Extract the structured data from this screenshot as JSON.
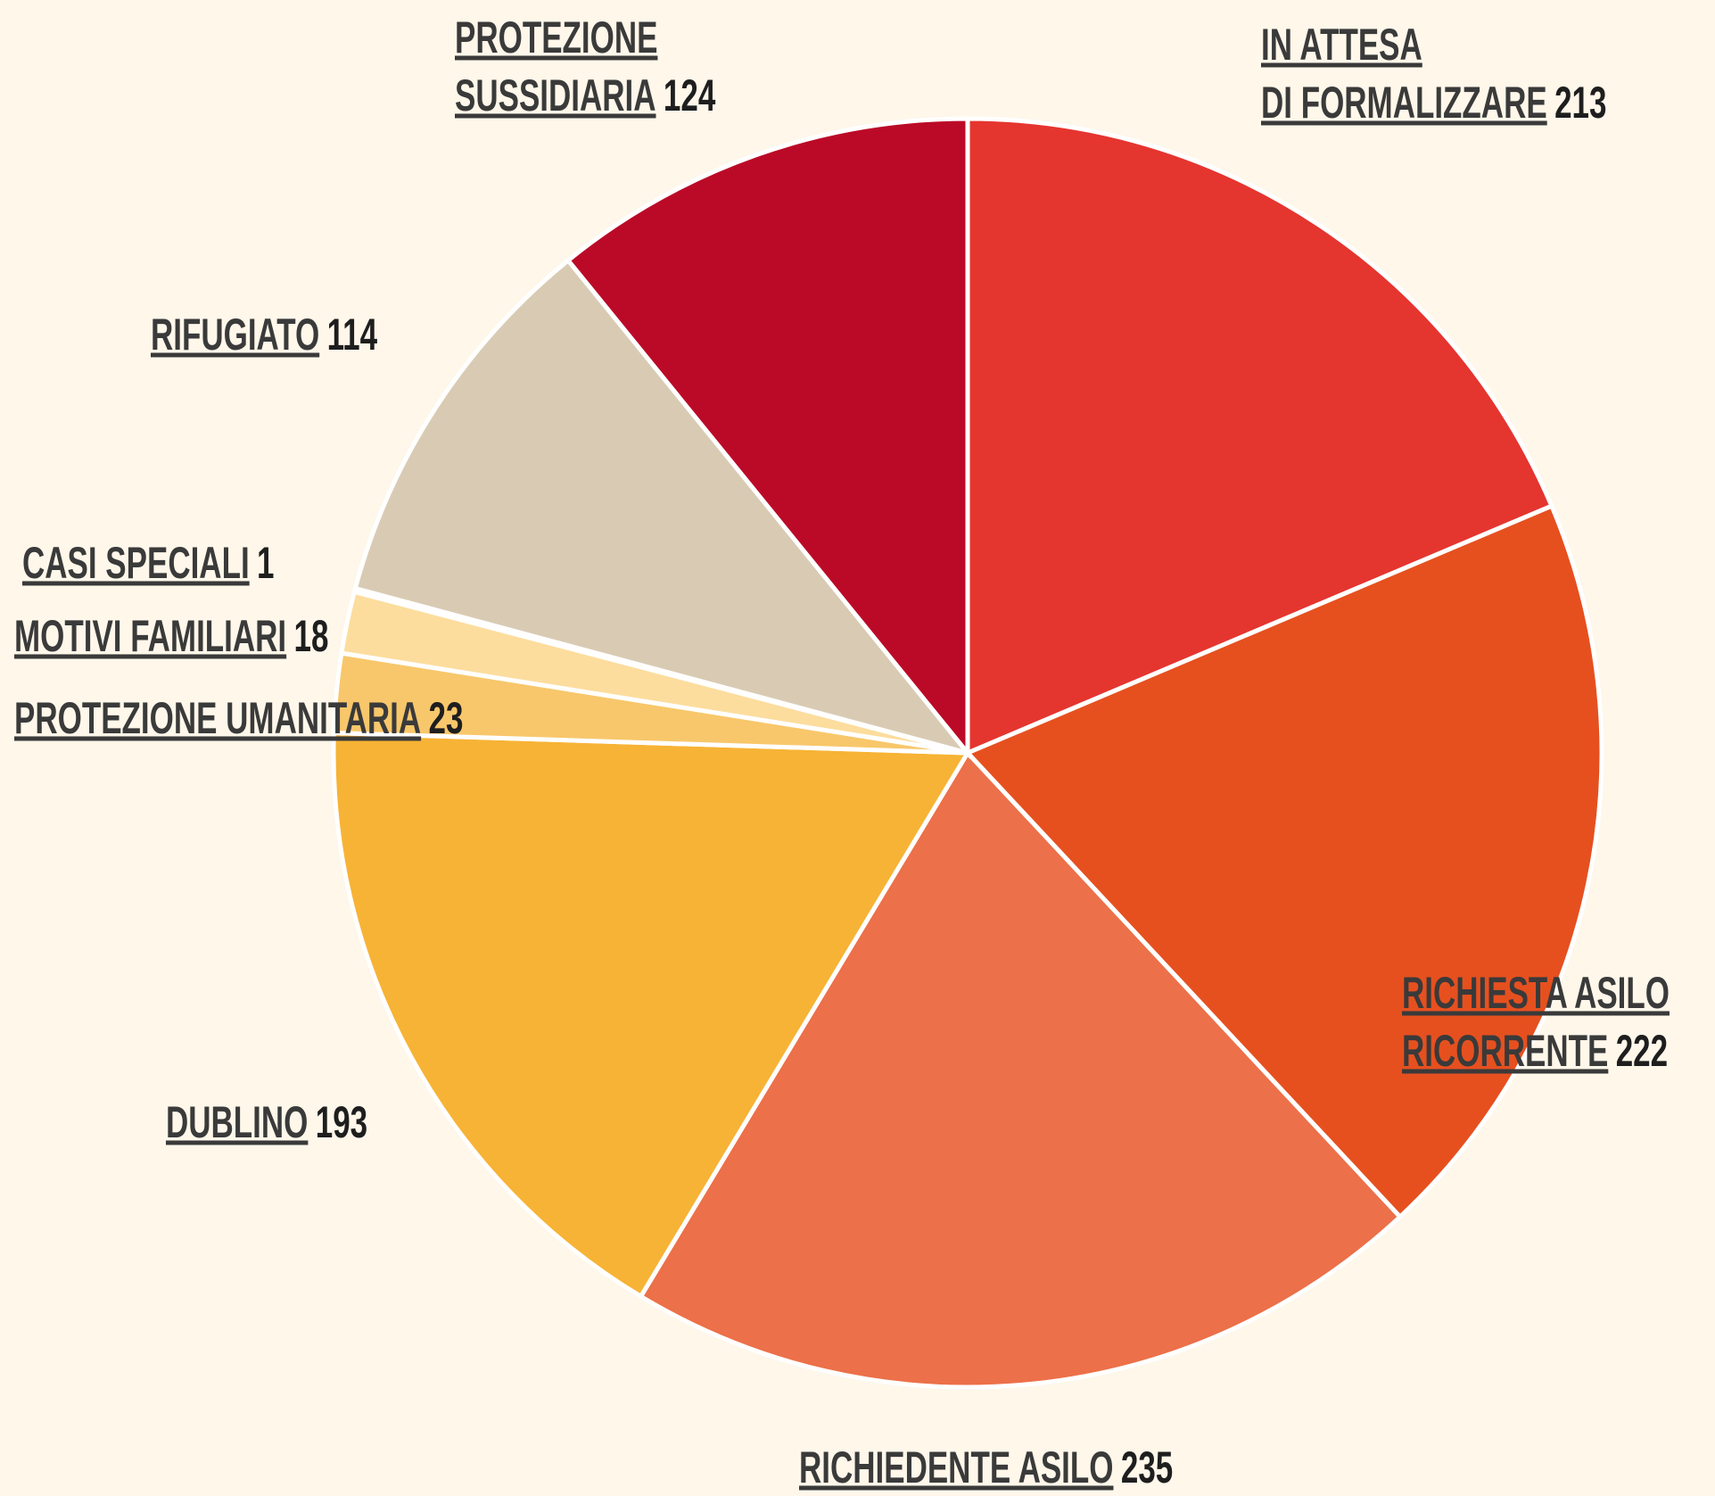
{
  "chart_data": {
    "type": "pie",
    "categories": [
      [
        "IN ATTESA",
        "DI FORMALIZZARE"
      ],
      [
        "RICHIESTA ASILO",
        "RICORRENTE"
      ],
      [
        "RICHIEDENTE ASILO"
      ],
      [
        "DUBLINO"
      ],
      [
        "PROTEZIONE UMANITARIA"
      ],
      [
        "MOTIVI FAMILIARI"
      ],
      [
        "CASI SPECIALI"
      ],
      [
        "RIFUGIATO"
      ],
      [
        "PROTEZIONE",
        "SUSSIDIARIA"
      ]
    ],
    "values": [
      213,
      222,
      235,
      193,
      23,
      18,
      1,
      114,
      124
    ],
    "colors": [
      "#e5352f",
      "#e6501f",
      "#ec7049",
      "#f7b335",
      "#f8c76b",
      "#fcdd9d",
      "#5bc0d0",
      "#d9cbb3",
      "#bb0a27"
    ]
  }
}
